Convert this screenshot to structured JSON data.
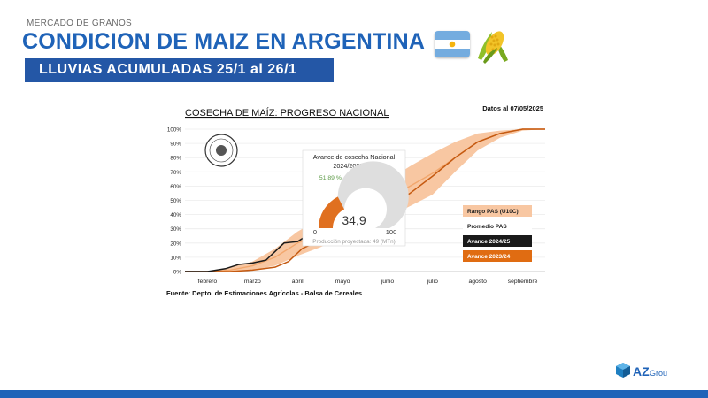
{
  "header": {
    "kicker": "MERCADO DE GRANOS",
    "title": "CONDICION DE MAIZ EN ARGENTINA",
    "subtitle": "LLUVIAS ACUMULADAS 25/1 al 26/1"
  },
  "brand": {
    "name": "AZ",
    "suffix": "Group"
  },
  "colors": {
    "title_blue": "#1f63b8",
    "band": "#f8c7a2",
    "avg": "#f2a76d",
    "current": "#c55a11",
    "prev": "#1a1a1a"
  },
  "chart_data": {
    "type": "line",
    "title": "COSECHA DE MAÍZ: PROGRESO NACIONAL",
    "date_note": "Datos al 07/05/2025",
    "source": "Fuente: Depto. de Estimaciones Agrícolas - Bolsa de Cereales",
    "x_categories": [
      "febrero",
      "marzo",
      "abril",
      "mayo",
      "junio",
      "julio",
      "agosto",
      "septiembre"
    ],
    "yticks": [
      "0%",
      "10%",
      "20%",
      "30%",
      "40%",
      "50%",
      "60%",
      "70%",
      "80%",
      "90%",
      "100%"
    ],
    "ylim": [
      0,
      100
    ],
    "xlim": [
      0,
      8
    ],
    "series": [
      {
        "name": "Rango PAS (U10C)",
        "kind": "band",
        "x": [
          0,
          0.5,
          1,
          1.5,
          2,
          2.5,
          3,
          3.5,
          4,
          4.5,
          5,
          5.5,
          6,
          6.5,
          7,
          7.5,
          8
        ],
        "low": [
          0,
          0,
          0,
          1,
          4,
          11,
          17,
          24,
          31,
          38,
          46,
          54,
          70,
          85,
          94,
          99,
          100
        ],
        "high": [
          0,
          0,
          3,
          7,
          16,
          28,
          37,
          45,
          55,
          64,
          74,
          83,
          91,
          97,
          99,
          100,
          100
        ]
      },
      {
        "name": "Promedio PAS",
        "x": [
          0,
          0.5,
          1,
          1.5,
          2,
          2.5,
          3,
          3.5,
          4,
          4.5,
          5,
          5.5,
          6,
          6.5,
          7,
          7.5,
          8
        ],
        "values": [
          0,
          0,
          1,
          4,
          10,
          20,
          27,
          34,
          43,
          51,
          60,
          69,
          80,
          91,
          97,
          100,
          100
        ]
      },
      {
        "name": "Avance 2024/25",
        "x": [
          0,
          0.5,
          0.9,
          1.2,
          1.5,
          1.8,
          2.0,
          2.2,
          2.5,
          2.7,
          3.0,
          3.3
        ],
        "values": [
          0,
          0,
          2,
          5,
          6,
          8,
          14,
          20,
          21,
          25,
          30,
          34.9
        ]
      },
      {
        "name": "Avance 2023/24",
        "x": [
          0,
          0.5,
          1.0,
          1.5,
          2.0,
          2.3,
          2.6,
          3.0,
          3.5,
          4.0,
          4.5,
          5.0,
          5.5,
          6.0,
          6.5,
          7.0,
          7.5,
          8.0
        ],
        "values": [
          0,
          0,
          0,
          1,
          3,
          7,
          16,
          22,
          29,
          36,
          45,
          55,
          67,
          80,
          91,
          97,
          100,
          100
        ]
      }
    ],
    "legend": [
      "Rango PAS (U10C)",
      "Promedio PAS",
      "Avance 2024/25",
      "Avance 2023/24"
    ],
    "legend_position": "right",
    "gauge": {
      "title_line1": "Avance de cosecha Nacional",
      "title_line2": "2024/2025 (%)",
      "delta_text": "51,89 % ▲ vs ciclo previo",
      "value": 34.9,
      "value_label": "34,9",
      "min_label": "0",
      "max_label": "100",
      "footnote": "Producción proyectada: 49 (MTn)"
    }
  }
}
